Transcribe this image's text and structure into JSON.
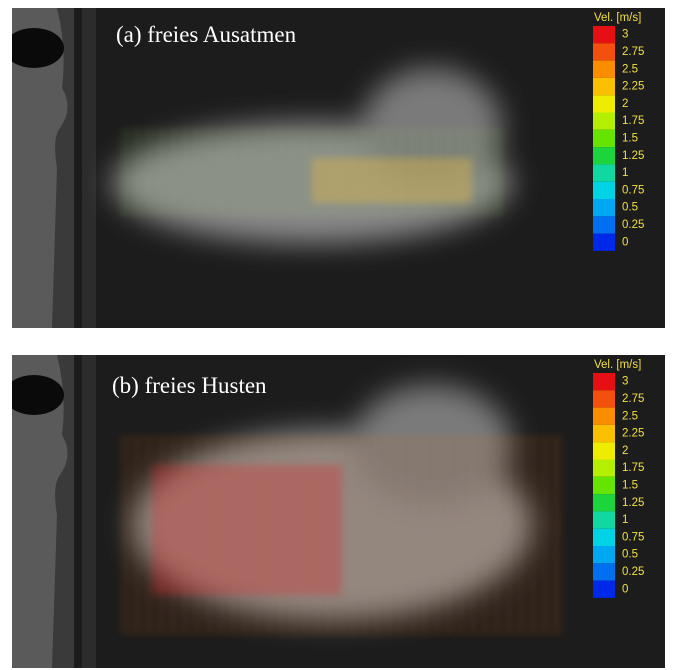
{
  "panels": [
    {
      "label": "(a) freies Ausatmen",
      "colorbar": {
        "title": "Vel. [m/s]",
        "ticks": [
          3,
          2.75,
          2.5,
          2.25,
          2,
          1.75,
          1.5,
          1.25,
          1,
          0.75,
          0.5,
          0.25,
          0
        ],
        "colors": [
          "#e60f14",
          "#f2500c",
          "#fa8c00",
          "#fac000",
          "#f0ec00",
          "#b4ee00",
          "#64e400",
          "#1cd43c",
          "#10d8a0",
          "#00d4e4",
          "#00a8f4",
          "#0070f0",
          "#0028e8"
        ]
      }
    },
    {
      "label": "(b) freies Husten",
      "colorbar": {
        "title": "Vel. [m/s]",
        "ticks": [
          3,
          2.75,
          2.5,
          2.25,
          2,
          1.75,
          1.5,
          1.25,
          1,
          0.75,
          0.5,
          0.25,
          0
        ],
        "colors": [
          "#e60f14",
          "#f2500c",
          "#fa8c00",
          "#fac000",
          "#f0ec00",
          "#b4ee00",
          "#64e400",
          "#1cd43c",
          "#10d8a0",
          "#00d4e4",
          "#00a8f4",
          "#0070f0",
          "#0028e8"
        ]
      }
    }
  ]
}
